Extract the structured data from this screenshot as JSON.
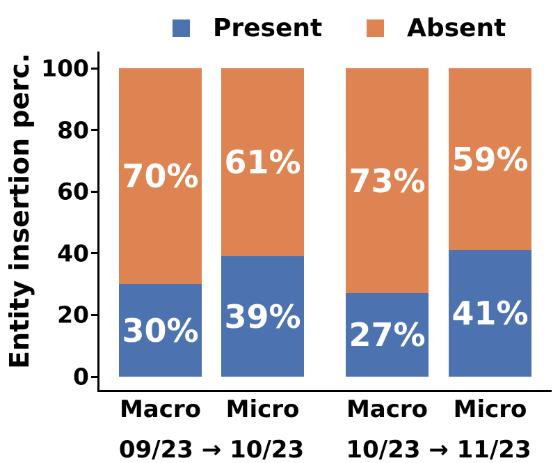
{
  "chart_data": {
    "type": "bar",
    "stacked": true,
    "orientation": "vertical",
    "title": "",
    "xlabel": "",
    "ylabel": "Entity insertion perc.",
    "ylim": [
      0,
      100
    ],
    "yticks": [
      0,
      20,
      40,
      60,
      80,
      100
    ],
    "grid": false,
    "legend_position": "top",
    "categories": [
      "Macro",
      "Micro",
      "Macro",
      "Micro"
    ],
    "group_labels": [
      "09/23 → 10/23",
      "10/23 → 11/23"
    ],
    "groups": [
      [
        0,
        1
      ],
      [
        2,
        3
      ]
    ],
    "series": [
      {
        "name": "Present",
        "color": "#4C72B0",
        "values": [
          30,
          39,
          27,
          41
        ],
        "value_labels": [
          "30%",
          "39%",
          "27%",
          "41%"
        ]
      },
      {
        "name": "Absent",
        "color": "#DD8452",
        "values": [
          70,
          61,
          73,
          59
        ],
        "value_labels": [
          "70%",
          "61%",
          "73%",
          "59%"
        ]
      }
    ]
  },
  "legend": {
    "items": [
      {
        "label": "Present",
        "color": "#4C72B0"
      },
      {
        "label": "Absent",
        "color": "#DD8452"
      }
    ]
  },
  "colors": {
    "present": "#4C72B0",
    "absent": "#DD8452",
    "axis": "#000000",
    "value_text": "#ffffff",
    "background": "#ffffff"
  }
}
